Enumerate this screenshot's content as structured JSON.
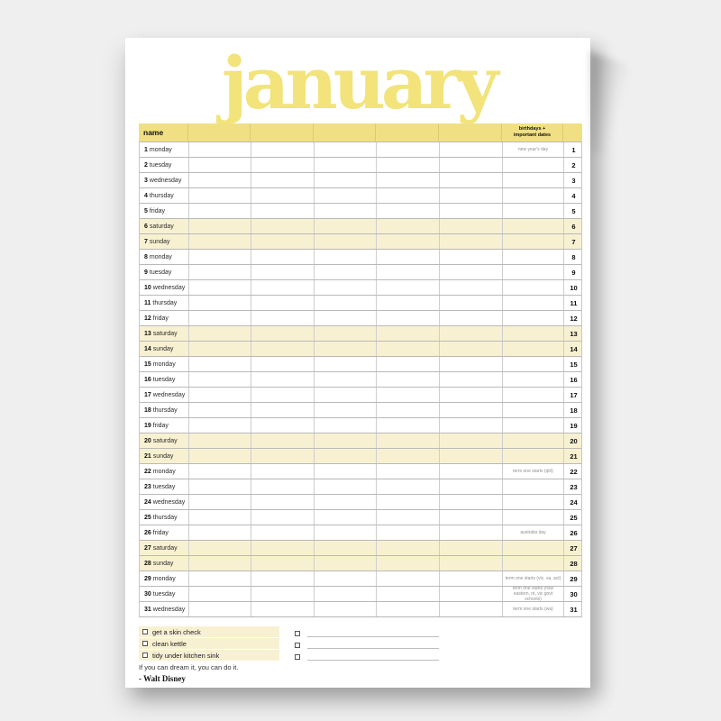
{
  "page": {
    "title": "january",
    "accent_yellow": "#f1e083",
    "pale_yellow": "#f8f1d1",
    "background_color": "#efefef"
  },
  "table": {
    "name_header": "name",
    "birthdays_header_line1": "birthdays +",
    "birthdays_header_line2": "important dates",
    "empty_columns": 5,
    "days": [
      {
        "num": "1",
        "weekday": "monday",
        "weekend": false,
        "note": "new year's day"
      },
      {
        "num": "2",
        "weekday": "tuesday",
        "weekend": false,
        "note": ""
      },
      {
        "num": "3",
        "weekday": "wednesday",
        "weekend": false,
        "note": ""
      },
      {
        "num": "4",
        "weekday": "thursday",
        "weekend": false,
        "note": ""
      },
      {
        "num": "5",
        "weekday": "friday",
        "weekend": false,
        "note": ""
      },
      {
        "num": "6",
        "weekday": "saturday",
        "weekend": true,
        "note": ""
      },
      {
        "num": "7",
        "weekday": "sunday",
        "weekend": true,
        "note": ""
      },
      {
        "num": "8",
        "weekday": "monday",
        "weekend": false,
        "note": ""
      },
      {
        "num": "9",
        "weekday": "tuesday",
        "weekend": false,
        "note": ""
      },
      {
        "num": "10",
        "weekday": "wednesday",
        "weekend": false,
        "note": ""
      },
      {
        "num": "11",
        "weekday": "thursday",
        "weekend": false,
        "note": ""
      },
      {
        "num": "12",
        "weekday": "friday",
        "weekend": false,
        "note": ""
      },
      {
        "num": "13",
        "weekday": "saturday",
        "weekend": true,
        "note": ""
      },
      {
        "num": "14",
        "weekday": "sunday",
        "weekend": true,
        "note": ""
      },
      {
        "num": "15",
        "weekday": "monday",
        "weekend": false,
        "note": ""
      },
      {
        "num": "16",
        "weekday": "tuesday",
        "weekend": false,
        "note": ""
      },
      {
        "num": "17",
        "weekday": "wednesday",
        "weekend": false,
        "note": ""
      },
      {
        "num": "18",
        "weekday": "thursday",
        "weekend": false,
        "note": ""
      },
      {
        "num": "19",
        "weekday": "friday",
        "weekend": false,
        "note": ""
      },
      {
        "num": "20",
        "weekday": "saturday",
        "weekend": true,
        "note": ""
      },
      {
        "num": "21",
        "weekday": "sunday",
        "weekend": true,
        "note": ""
      },
      {
        "num": "22",
        "weekday": "monday",
        "weekend": false,
        "note": "term one starts (qld)"
      },
      {
        "num": "23",
        "weekday": "tuesday",
        "weekend": false,
        "note": ""
      },
      {
        "num": "24",
        "weekday": "wednesday",
        "weekend": false,
        "note": ""
      },
      {
        "num": "25",
        "weekday": "thursday",
        "weekend": false,
        "note": ""
      },
      {
        "num": "26",
        "weekday": "friday",
        "weekend": false,
        "note": "australia day"
      },
      {
        "num": "27",
        "weekday": "saturday",
        "weekend": true,
        "note": ""
      },
      {
        "num": "28",
        "weekday": "sunday",
        "weekend": true,
        "note": ""
      },
      {
        "num": "29",
        "weekday": "monday",
        "weekend": false,
        "note": "term one starts (vic, sa, act)"
      },
      {
        "num": "30",
        "weekday": "tuesday",
        "weekend": false,
        "note": "term one starts (nsw eastern, nt, vic govt schools)"
      },
      {
        "num": "31",
        "weekday": "wednesday",
        "weekend": false,
        "note": "term one starts (wa)"
      }
    ]
  },
  "checklist": {
    "items": [
      "get a skin check",
      "clean kettle",
      "tidy under kitchen sink"
    ],
    "blank_rows": 3
  },
  "quote": {
    "text": "If you can dream it, you can do it.",
    "attribution": "- Walt Disney"
  }
}
